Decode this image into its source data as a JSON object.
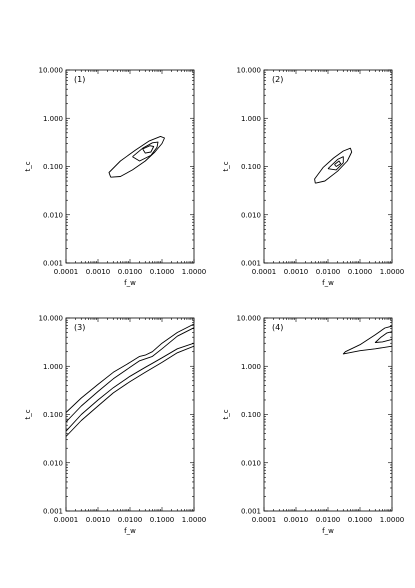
{
  "chart_data": [
    {
      "type": "line",
      "panel_label": "(1)",
      "xlabel": "f_w",
      "ylabel": "t_c",
      "xscale": "log",
      "yscale": "log",
      "xlim": [
        0.0001,
        1.0
      ],
      "ylim": [
        0.001,
        10.0
      ],
      "x_ticks": [
        "0.0001",
        "0.0010",
        "0.0100",
        "0.1000",
        "1.0000"
      ],
      "y_ticks": [
        "10.000",
        "1.000",
        "0.100",
        "0.010",
        "0.001"
      ],
      "grid": false,
      "series": [
        {
          "points": [
            [
              0.0025,
              0.06
            ],
            [
              0.0022,
              0.075
            ],
            [
              0.005,
              0.13
            ],
            [
              0.015,
              0.22
            ],
            [
              0.04,
              0.34
            ],
            [
              0.09,
              0.42
            ],
            [
              0.12,
              0.39
            ],
            [
              0.1,
              0.3
            ],
            [
              0.06,
              0.2
            ],
            [
              0.03,
              0.13
            ],
            [
              0.012,
              0.085
            ],
            [
              0.005,
              0.062
            ],
            [
              0.0025,
              0.06
            ]
          ]
        },
        {
          "points": [
            [
              0.012,
              0.16
            ],
            [
              0.025,
              0.24
            ],
            [
              0.05,
              0.31
            ],
            [
              0.075,
              0.32
            ],
            [
              0.07,
              0.25
            ],
            [
              0.045,
              0.17
            ],
            [
              0.02,
              0.13
            ],
            [
              0.012,
              0.16
            ]
          ]
        },
        {
          "points": [
            [
              0.025,
              0.23
            ],
            [
              0.042,
              0.27
            ],
            [
              0.055,
              0.26
            ],
            [
              0.045,
              0.2
            ],
            [
              0.03,
              0.19
            ],
            [
              0.025,
              0.23
            ]
          ]
        }
      ]
    },
    {
      "type": "line",
      "panel_label": "(2)",
      "xlabel": "f_w",
      "ylabel": "t_c",
      "xscale": "log",
      "yscale": "log",
      "xlim": [
        0.0001,
        1.0
      ],
      "ylim": [
        0.001,
        10.0
      ],
      "x_ticks": [
        "0.0001",
        "0.0010",
        "0.0100",
        "0.1000",
        "1.0000"
      ],
      "y_ticks": [
        "10.000",
        "1.000",
        "0.100",
        "0.010",
        "0.001"
      ],
      "grid": false,
      "series": [
        {
          "points": [
            [
              0.004,
              0.045
            ],
            [
              0.0038,
              0.055
            ],
            [
              0.007,
              0.095
            ],
            [
              0.015,
              0.15
            ],
            [
              0.03,
              0.21
            ],
            [
              0.05,
              0.24
            ],
            [
              0.055,
              0.2
            ],
            [
              0.04,
              0.13
            ],
            [
              0.02,
              0.08
            ],
            [
              0.008,
              0.05
            ],
            [
              0.004,
              0.045
            ]
          ]
        },
        {
          "points": [
            [
              0.01,
              0.09
            ],
            [
              0.02,
              0.14
            ],
            [
              0.03,
              0.16
            ],
            [
              0.03,
              0.12
            ],
            [
              0.018,
              0.085
            ],
            [
              0.01,
              0.09
            ]
          ]
        },
        {
          "points": [
            [
              0.016,
              0.11
            ],
            [
              0.022,
              0.13
            ],
            [
              0.025,
              0.115
            ],
            [
              0.018,
              0.1
            ],
            [
              0.016,
              0.11
            ]
          ]
        }
      ]
    },
    {
      "type": "line",
      "panel_label": "(3)",
      "xlabel": "f_w",
      "ylabel": "t_c",
      "xscale": "log",
      "yscale": "log",
      "xlim": [
        0.0001,
        1.0
      ],
      "ylim": [
        0.001,
        10.0
      ],
      "x_ticks": [
        "0.0001",
        "0.0010",
        "0.0100",
        "0.1000",
        "1.0000"
      ],
      "y_ticks": [
        "10.000",
        "1.000",
        "0.100",
        "0.010",
        "0.001"
      ],
      "grid": false,
      "series": [
        {
          "points": [
            [
              0.0001,
              0.11
            ],
            [
              0.0003,
              0.22
            ],
            [
              0.001,
              0.42
            ],
            [
              0.003,
              0.75
            ],
            [
              0.01,
              1.2
            ],
            [
              0.02,
              1.6
            ],
            [
              0.03,
              1.7
            ],
            [
              0.05,
              2.0
            ],
            [
              0.1,
              3.0
            ],
            [
              0.3,
              5.0
            ],
            [
              1.0,
              7.5
            ]
          ]
        },
        {
          "points": [
            [
              0.0001,
              0.07
            ],
            [
              0.0003,
              0.15
            ],
            [
              0.001,
              0.3
            ],
            [
              0.003,
              0.55
            ],
            [
              0.01,
              0.95
            ],
            [
              0.02,
              1.3
            ],
            [
              0.05,
              1.6
            ],
            [
              0.1,
              2.3
            ],
            [
              0.3,
              4.2
            ],
            [
              1.0,
              6.3
            ]
          ]
        },
        {
          "points": [
            [
              0.0001,
              0.045
            ],
            [
              0.0003,
              0.1
            ],
            [
              0.001,
              0.2
            ],
            [
              0.003,
              0.36
            ],
            [
              0.01,
              0.62
            ],
            [
              0.03,
              0.95
            ],
            [
              0.05,
              1.15
            ],
            [
              0.1,
              1.5
            ],
            [
              0.3,
              2.3
            ],
            [
              1.0,
              3.0
            ]
          ]
        },
        {
          "points": [
            [
              0.0001,
              0.035
            ],
            [
              0.0003,
              0.075
            ],
            [
              0.001,
              0.15
            ],
            [
              0.003,
              0.28
            ],
            [
              0.01,
              0.48
            ],
            [
              0.03,
              0.75
            ],
            [
              0.1,
              1.2
            ],
            [
              0.3,
              1.9
            ],
            [
              1.0,
              2.6
            ]
          ]
        }
      ]
    },
    {
      "type": "line",
      "panel_label": "(4)",
      "xlabel": "f_w",
      "ylabel": "t_c",
      "xscale": "log",
      "yscale": "log",
      "xlim": [
        0.0001,
        1.0
      ],
      "ylim": [
        0.001,
        10.0
      ],
      "x_ticks": [
        "0.0001",
        "0.0010",
        "0.0100",
        "0.1000",
        "1.0000"
      ],
      "y_ticks": [
        "10.000",
        "1.000",
        "0.100",
        "0.010",
        "0.001"
      ],
      "grid": false,
      "series": [
        {
          "points": [
            [
              1.0,
              2.6
            ],
            [
              0.3,
              2.3
            ],
            [
              0.1,
              2.1
            ],
            [
              0.03,
              1.8
            ],
            [
              0.035,
              2.0
            ],
            [
              0.1,
              2.8
            ],
            [
              0.3,
              4.5
            ],
            [
              0.6,
              6.2
            ],
            [
              1.0,
              6.8
            ]
          ]
        },
        {
          "points": [
            [
              1.0,
              3.6
            ],
            [
              0.5,
              3.2
            ],
            [
              0.3,
              3.1
            ],
            [
              0.45,
              4.0
            ],
            [
              0.7,
              4.9
            ],
            [
              1.0,
              5.2
            ]
          ]
        }
      ]
    }
  ]
}
